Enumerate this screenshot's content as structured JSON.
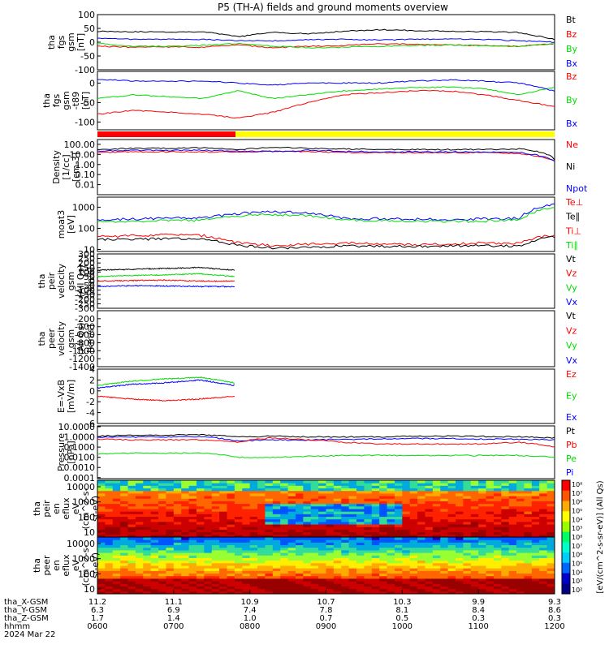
{
  "title": "P5 (TH-A) fields and ground moments overview",
  "colors": {
    "black": "#000000",
    "red": "#ff0000",
    "green": "#00dd00",
    "blue": "#0000ff",
    "yellow": "#ffff00"
  },
  "chart_data": [
    {
      "type": "line",
      "id": "fgs",
      "ylabel": [
        "tha",
        "fgs",
        "gsm",
        "[nT]"
      ],
      "ylim": [
        -100,
        100
      ],
      "ticks": [
        "100",
        "50",
        "0",
        "-50",
        "-100"
      ],
      "legend": [
        {
          "name": "Bt",
          "color": "#000000"
        },
        {
          "name": "Bz",
          "color": "#ff0000"
        },
        {
          "name": "By",
          "color": "#00dd00"
        },
        {
          "name": "Bx",
          "color": "#0000ff"
        }
      ],
      "series": [
        {
          "name": "Bt",
          "color": "#000000",
          "values": [
            40,
            38,
            37,
            38,
            20,
            36,
            30,
            40,
            45,
            42,
            40,
            38,
            35,
            10
          ]
        },
        {
          "name": "Bz",
          "color": "#ff0000",
          "values": [
            -15,
            -18,
            -17,
            -18,
            -10,
            -20,
            -15,
            -12,
            -5,
            -8,
            -10,
            -12,
            -15,
            -5
          ]
        },
        {
          "name": "By",
          "color": "#00dd00",
          "values": [
            -5,
            -15,
            -15,
            -12,
            -5,
            -15,
            -20,
            -18,
            -15,
            -12,
            -10,
            -12,
            -15,
            -5
          ]
        },
        {
          "name": "Bx",
          "color": "#0000ff",
          "values": [
            15,
            10,
            10,
            10,
            5,
            5,
            10,
            10,
            8,
            10,
            12,
            10,
            5,
            0
          ]
        }
      ]
    },
    {
      "type": "line",
      "id": "fgs_t89",
      "ylabel": [
        "tha",
        "fgs",
        "gsm",
        "-t89",
        "[nT]"
      ],
      "ylim": [
        -120,
        30
      ],
      "ticks": [
        "0",
        "-50",
        "-100"
      ],
      "legend": [
        {
          "name": "Bz",
          "color": "#ff0000"
        },
        {
          "name": "By",
          "color": "#00dd00"
        },
        {
          "name": "Bx",
          "color": "#0000ff"
        }
      ],
      "series": [
        {
          "name": "Bz",
          "color": "#ff0000",
          "values": [
            -80,
            -70,
            -75,
            -80,
            -90,
            -75,
            -50,
            -30,
            -25,
            -20,
            -20,
            -30,
            -45,
            -60
          ]
        },
        {
          "name": "By",
          "color": "#00dd00",
          "values": [
            -40,
            -30,
            -35,
            -40,
            -20,
            -40,
            -30,
            -20,
            -15,
            -12,
            -10,
            -15,
            -30,
            -10
          ]
        },
        {
          "name": "Bx",
          "color": "#0000ff",
          "values": [
            10,
            5,
            5,
            5,
            0,
            -5,
            0,
            0,
            0,
            5,
            8,
            5,
            0,
            -20
          ]
        }
      ]
    },
    {
      "type": "line",
      "id": "density",
      "log": true,
      "ylabel": [
        "Density",
        "[1/cc]",
        "[cm-3]"
      ],
      "ylim": [
        0.001,
        300
      ],
      "ticks": [
        "100.00",
        "10.00",
        "1.00",
        "0.10",
        "0.01"
      ],
      "legend": [
        {
          "name": "Ne",
          "color": "#ff0000"
        },
        {
          "name": "Ni",
          "color": "#000000"
        },
        {
          "name": "Npot",
          "color": "#0000ff"
        }
      ],
      "series": [
        {
          "name": "Ni",
          "color": "#000000",
          "values": [
            30,
            40,
            40,
            45,
            30,
            50,
            40,
            35,
            30,
            30,
            30,
            30,
            35,
            3
          ]
        },
        {
          "name": "Ne",
          "color": "#ff0000",
          "values": [
            15,
            18,
            18,
            18,
            18,
            20,
            18,
            16,
            15,
            15,
            15,
            15,
            12,
            2
          ]
        },
        {
          "name": "Npot",
          "color": "#0000ff",
          "values": [
            20,
            25,
            25,
            25,
            22,
            20,
            25,
            20,
            18,
            18,
            18,
            18,
            15,
            2
          ]
        }
      ]
    },
    {
      "type": "line",
      "id": "temp",
      "log": true,
      "ylabel": [
        "moat3",
        "[eV]"
      ],
      "ylim": [
        8,
        3000
      ],
      "ticks": [
        "1000",
        "100",
        "10"
      ],
      "legend": [
        {
          "name": "Te⊥",
          "color": "#ff0000"
        },
        {
          "name": "Te∥",
          "color": "#000000"
        },
        {
          "name": "Ti⊥",
          "color": "#ff0000"
        },
        {
          "name": "Ti∥",
          "color": "#00dd00"
        }
      ],
      "series": [
        {
          "name": "Ti⊥",
          "color": "#0000ff",
          "values": [
            250,
            280,
            300,
            300,
            500,
            600,
            550,
            300,
            280,
            270,
            260,
            280,
            300,
            1500
          ]
        },
        {
          "name": "Ti∥",
          "color": "#00dd00",
          "values": [
            200,
            220,
            230,
            240,
            400,
            450,
            400,
            250,
            230,
            220,
            210,
            220,
            250,
            1000
          ]
        },
        {
          "name": "Te⊥",
          "color": "#ff0000",
          "values": [
            40,
            45,
            50,
            45,
            20,
            15,
            18,
            20,
            18,
            17,
            18,
            20,
            20,
            50
          ]
        },
        {
          "name": "Te∥",
          "color": "#000000",
          "values": [
            30,
            30,
            32,
            30,
            15,
            12,
            12,
            15,
            14,
            14,
            15,
            15,
            15,
            40
          ]
        }
      ]
    },
    {
      "type": "line",
      "id": "peir_v",
      "ylabel": [
        "tha",
        "peir",
        "velocity",
        "gsm",
        "(All Qs)",
        "[km/s]"
      ],
      "ylim": [
        -300,
        300
      ],
      "ticks": [
        "300",
        "250",
        "200",
        "150",
        "100",
        "50",
        "0",
        "-50",
        "-100",
        "-150",
        "-200",
        "-250",
        "-300"
      ],
      "legend": [
        {
          "name": "Vt",
          "color": "#000000"
        },
        {
          "name": "Vz",
          "color": "#ff0000"
        },
        {
          "name": "Vy",
          "color": "#00dd00"
        },
        {
          "name": "Vx",
          "color": "#0000ff"
        }
      ],
      "series": [
        {
          "name": "Vt",
          "color": "#000000",
          "values": [
            120,
            130,
            140,
            150,
            120
          ]
        },
        {
          "name": "Vz",
          "color": "#ff0000",
          "values": [
            0,
            5,
            10,
            0,
            0
          ]
        },
        {
          "name": "Vy",
          "color": "#00dd00",
          "values": [
            50,
            60,
            70,
            80,
            50
          ]
        },
        {
          "name": "Vx",
          "color": "#0000ff",
          "values": [
            -60,
            -50,
            -55,
            -60,
            -60
          ]
        }
      ]
    },
    {
      "type": "line",
      "id": "peer_v",
      "ylabel": [
        "tha",
        "peer",
        "velocity",
        "gsm",
        "(All Qs)",
        "[km/s]"
      ],
      "ylim": [
        -1400,
        0
      ],
      "ticks": [
        "-200",
        "-400",
        "-600",
        "-800",
        "-1000",
        "-1200",
        "-1400"
      ],
      "legend": [
        {
          "name": "Vt",
          "color": "#000000"
        },
        {
          "name": "Vz",
          "color": "#ff0000"
        },
        {
          "name": "Vy",
          "color": "#00dd00"
        },
        {
          "name": "Vx",
          "color": "#0000ff"
        }
      ],
      "series": []
    },
    {
      "type": "line",
      "id": "efield",
      "ylabel": [
        "E=-VxB",
        "[mV/m]"
      ],
      "ylim": [
        -6,
        4
      ],
      "ticks": [
        "4",
        "2",
        "0",
        "-2",
        "-4",
        "-6"
      ],
      "legend": [
        {
          "name": "Ez",
          "color": "#ff0000"
        },
        {
          "name": "Ey",
          "color": "#00dd00"
        },
        {
          "name": "Ex",
          "color": "#0000ff"
        }
      ],
      "series": [
        {
          "name": "Ey",
          "color": "#00dd00",
          "values": [
            1,
            1.8,
            2.2,
            2.5,
            1.5
          ]
        },
        {
          "name": "Ex",
          "color": "#0000ff",
          "values": [
            0.5,
            1.2,
            1.5,
            2,
            1
          ]
        },
        {
          "name": "Ez",
          "color": "#ff0000",
          "values": [
            -1,
            -1.5,
            -1.8,
            -1.5,
            -1
          ]
        }
      ]
    },
    {
      "type": "line",
      "id": "pressure",
      "log": true,
      "ylabel": [
        "Pressure",
        "[nPa]"
      ],
      "ylim": [
        8e-05,
        12
      ],
      "ticks": [
        "10.0000",
        "1.0000",
        "0.1000",
        "0.0100",
        "0.0010",
        "0.0001"
      ],
      "legend": [
        {
          "name": "Pt",
          "color": "#000000"
        },
        {
          "name": "Pb",
          "color": "#ff0000"
        },
        {
          "name": "Pe",
          "color": "#00dd00"
        },
        {
          "name": "Pi",
          "color": "#0000ff"
        }
      ],
      "series": [
        {
          "name": "Pt",
          "color": "#000000",
          "values": [
            1.2,
            1.5,
            1.5,
            1.6,
            1,
            1.2,
            1,
            1,
            1,
            1.2,
            1.2,
            1.1,
            1,
            0.8
          ]
        },
        {
          "name": "Pi",
          "color": "#0000ff",
          "values": [
            0.9,
            1,
            1,
            1,
            0.4,
            0.5,
            0.5,
            0.6,
            0.6,
            0.7,
            0.7,
            0.6,
            0.6,
            0.5
          ]
        },
        {
          "name": "Pb",
          "color": "#ff0000",
          "values": [
            0.6,
            0.5,
            0.5,
            0.5,
            0.3,
            0.8,
            0.5,
            0.3,
            0.2,
            0.2,
            0.2,
            0.2,
            0.3,
            0.1
          ]
        },
        {
          "name": "Pe",
          "color": "#00dd00",
          "values": [
            0.02,
            0.025,
            0.025,
            0.025,
            0.01,
            0.01,
            0.012,
            0.015,
            0.015,
            0.015,
            0.015,
            0.015,
            0.015,
            0.01
          ]
        }
      ]
    },
    {
      "type": "heatmap",
      "id": "peir_en",
      "ylabel": [
        "tha",
        "peir",
        "en",
        "eflux",
        "eV",
        "(cm^2-s-",
        "sr-eV)"
      ],
      "ticks": [
        "10000",
        "1000",
        "100",
        "10"
      ]
    },
    {
      "type": "heatmap",
      "id": "peer_en",
      "ylabel": [
        "tha",
        "peer",
        "en",
        "eflux",
        "eV",
        "(cm^2-s-",
        "sr-eV)"
      ],
      "ticks": [
        "10000",
        "1000",
        "100",
        "10"
      ]
    }
  ],
  "colorbar": {
    "label": "[eV/(cm^2-s-sr-eV)] (All Qs)",
    "ticks": [
      "10⁸",
      "10⁷",
      "10⁶",
      "10⁵",
      "10⁴",
      "10³",
      "10⁸",
      "10⁷",
      "10⁶",
      "10⁵",
      "10⁴",
      "10³",
      "10²"
    ]
  },
  "xaxis": {
    "times": [
      "0600",
      "0700",
      "0800",
      "0900",
      "1000",
      "1100",
      "1200"
    ],
    "rows": [
      {
        "label": "tha_X-GSM",
        "values": [
          "11.2",
          "11.1",
          "10.9",
          "10.7",
          "10.3",
          "9.9",
          "9.3"
        ]
      },
      {
        "label": "tha_Y-GSM",
        "values": [
          "6.3",
          "6.9",
          "7.4",
          "7.8",
          "8.1",
          "8.4",
          "8.6"
        ]
      },
      {
        "label": "tha_Z-GSM",
        "values": [
          "1.7",
          "1.4",
          "1.0",
          "0.7",
          "0.5",
          "0.3",
          "0.3"
        ]
      }
    ],
    "time_label": "hhmm",
    "date": "2024 Mar 22"
  }
}
